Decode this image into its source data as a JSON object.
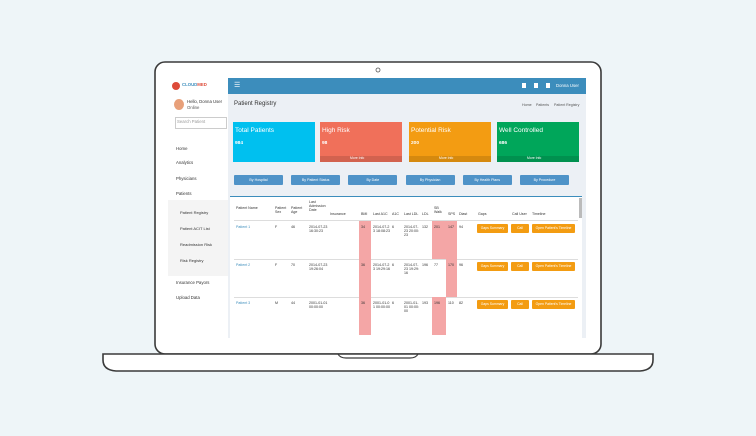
{
  "app": {
    "logo_main": "CLOUD",
    "logo_accent": "MED",
    "user": "Donna User"
  },
  "sidebar": {
    "greeting": "Hello, Donna User",
    "status": "Online",
    "search_placeholder": "Search Patient",
    "menu": [
      "Home",
      "Analytics",
      "Physicians",
      "Patients"
    ],
    "submenu": [
      "Patient Registry",
      "Patient ACIT List",
      "Readmission Risk",
      "Risk Registry"
    ],
    "menu_bottom": [
      "Insurance Payors",
      "Upload Data"
    ]
  },
  "page": {
    "title": "Patient Registry",
    "breadcrumb": [
      "Home",
      "Patients",
      "Patient Registry"
    ]
  },
  "cards": [
    {
      "title": "Total Patients",
      "value": "984",
      "color": "#00c0ef"
    },
    {
      "title": "High Risk",
      "value": "98",
      "color": "#f0705a",
      "footer": "More Info"
    },
    {
      "title": "Potential Risk",
      "value": "200",
      "color": "#f39c12",
      "footer": "More Info"
    },
    {
      "title": "Well Controlled",
      "value": "686",
      "color": "#00a65a",
      "footer": "More Info"
    }
  ],
  "filters": [
    "By Hospital",
    "By Patient Status",
    "By Date",
    "By Physician",
    "By Health Plans",
    "By Procedure"
  ],
  "table": {
    "headers": [
      "Patient Name",
      "Patient Sex",
      "Patient Age",
      "Last Admission Date",
      "Insurance",
      "BMI",
      "Last A1C",
      "A1C",
      "Last LDL",
      "LDL",
      "SB Walk",
      "SPS",
      "Diast",
      "Gaps",
      "Call User",
      "Timeline"
    ],
    "actions": [
      "Gaps Summary",
      "Call",
      "Open Patient's Timeline"
    ],
    "rows": [
      {
        "name": "Patient 1",
        "sex": "F",
        "age": "46",
        "admission": "2014-07-23 16:30:23",
        "bmi": "34",
        "last_a1c": "2014-07-23 18:08:23",
        "a1c": "6",
        "last_ldl": "2014-07-23 20:00:23",
        "ldl": "132",
        "sb_walk": "201",
        "sps": "147",
        "diast": "94",
        "highlight": [
          "bmi",
          "sb_walk",
          "sps"
        ]
      },
      {
        "name": "Patient 2",
        "sex": "F",
        "age": "70",
        "admission": "2014-07-23 19:26:04",
        "bmi": "36",
        "last_a1c": "2014-07-23 19:29:16",
        "a1c": "6",
        "last_ldl": "2014-07-23 19:29:16",
        "ldl": "196",
        "sb_walk": "77",
        "sps": "170",
        "diast": "96",
        "highlight": [
          "bmi",
          "sps"
        ]
      },
      {
        "name": "Patient 3",
        "sex": "M",
        "age": "44",
        "admission": "2001-01-01 00:00:00",
        "bmi": "36",
        "last_a1c": "2001-01-01 00:00:00",
        "a1c": "6",
        "last_ldl": "2001-01-01 00:00:00",
        "ldl": "193",
        "sb_walk": "196",
        "sps": "110",
        "diast": "82",
        "highlight": [
          "bmi",
          "sb_walk"
        ]
      }
    ]
  }
}
